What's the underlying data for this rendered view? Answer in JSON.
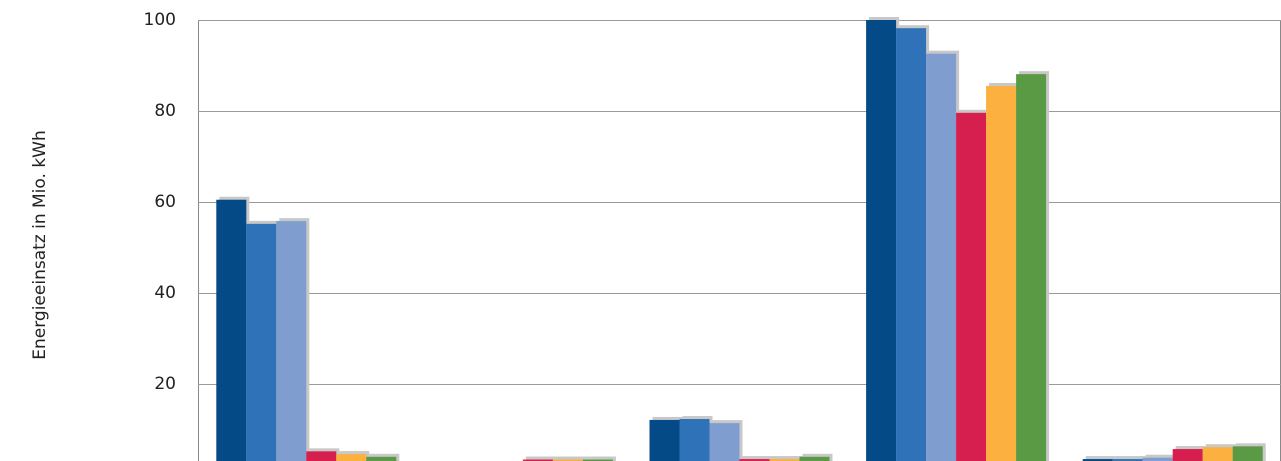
{
  "chart_data": {
    "type": "bar",
    "y_label": "Energieeinsatz in Mio. kWh",
    "categories": [
      null,
      null,
      null,
      null,
      null
    ],
    "series": [
      {
        "color": "#034a87",
        "values": [
          60.5,
          1.5,
          12.1,
          100,
          3.5
        ]
      },
      {
        "color": "#2f72b8",
        "values": [
          55.2,
          1.5,
          12.3,
          98.2,
          3.5
        ]
      },
      {
        "color": "#7f9dcf",
        "values": [
          55.8,
          1.5,
          11.4,
          92.6,
          3.8
        ]
      },
      {
        "color": "#d61f4e",
        "values": [
          5.2,
          3.4,
          3.5,
          79.6,
          5.7
        ]
      },
      {
        "color": "#fbb040",
        "values": [
          4.6,
          3.4,
          3.5,
          85.5,
          6.1
        ]
      },
      {
        "color": "#5a9a44",
        "values": [
          4.0,
          3.4,
          4.0,
          88.1,
          6.3
        ]
      }
    ],
    "ylim": [
      0,
      100
    ],
    "yticks": [
      20,
      40,
      60,
      80,
      100
    ],
    "grid": true
  }
}
